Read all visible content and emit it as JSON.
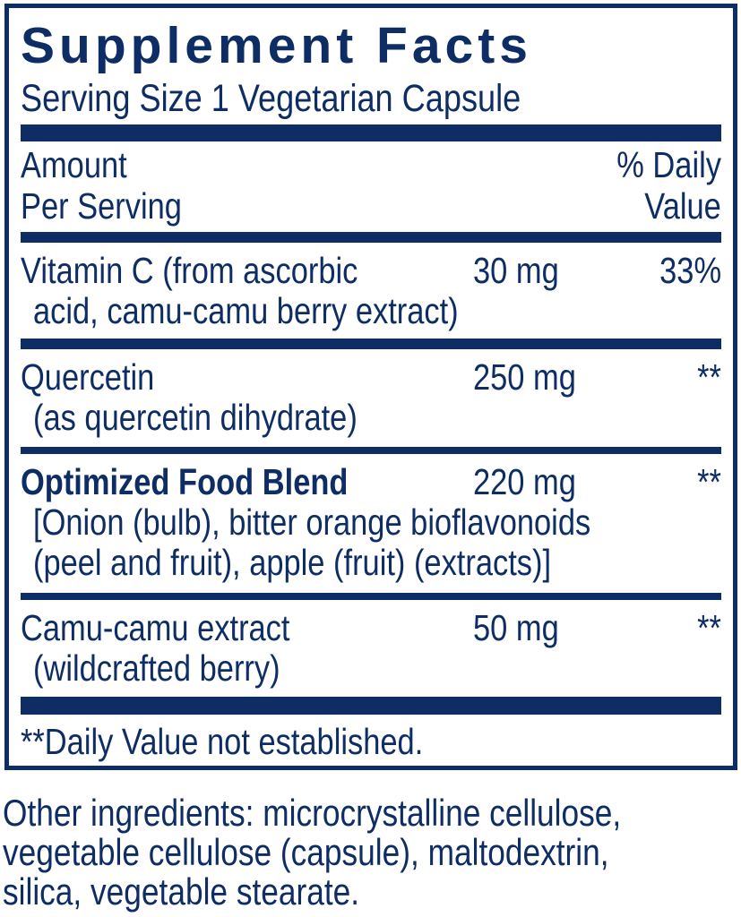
{
  "colors": {
    "navy": "#0d2d64"
  },
  "panel": {
    "title": "Supplement Facts",
    "serving_size": "Serving Size 1 Vegetarian Capsule",
    "header": {
      "left_lines": [
        "Amount",
        "Per Serving"
      ],
      "right_lines": [
        "% Daily",
        "Value"
      ]
    },
    "footnote": "**Daily Value not established."
  },
  "rows": [
    {
      "name_lines": [
        "Vitamin C (from ascorbic",
        "acid, camu-camu berry extract)"
      ],
      "amount": "30 mg",
      "daily_value": "33%"
    },
    {
      "name_lines": [
        "Quercetin",
        "(as quercetin dihydrate)"
      ],
      "amount": "250 mg",
      "daily_value": "**"
    },
    {
      "name_lines": [
        "Optimized Food Blend",
        "[Onion (bulb), bitter orange bioflavonoids",
        "(peel and fruit), apple (fruit) (extracts)]"
      ],
      "amount": "220 mg",
      "daily_value": "**"
    },
    {
      "name_lines": [
        "Camu-camu extract",
        "(wildcrafted berry)"
      ],
      "amount": "50 mg",
      "daily_value": "**"
    }
  ],
  "other_ingredients": {
    "lines": [
      "Other ingredients: microcrystalline cellulose,",
      "vegetable cellulose (capsule), maltodextrin,",
      "silica, vegetable stearate."
    ]
  }
}
